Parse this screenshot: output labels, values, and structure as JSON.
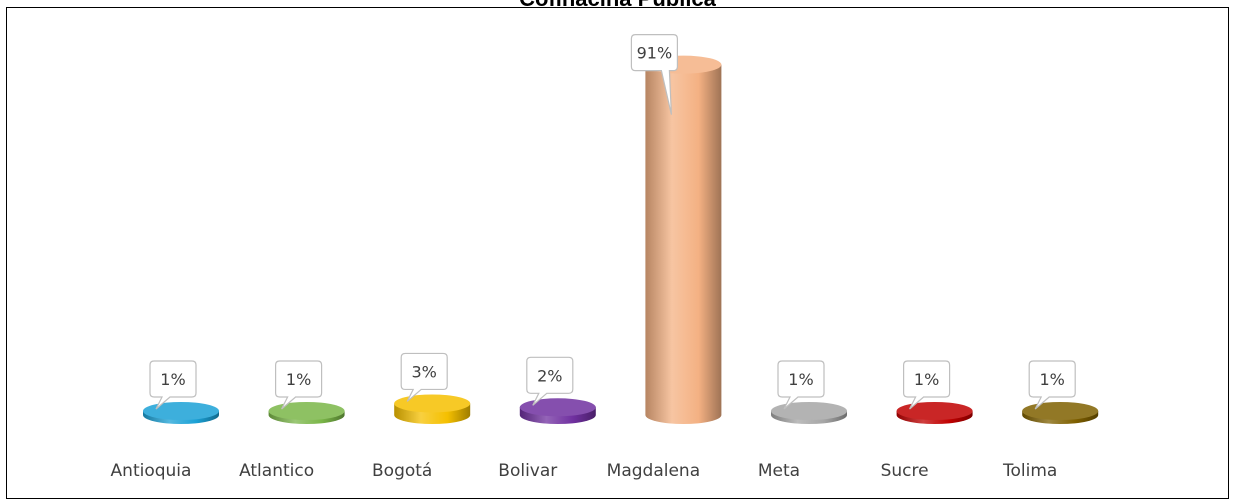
{
  "chart_data": {
    "type": "bar",
    "title": "Cofinaciña Pública",
    "categories": [
      "Antioquia",
      "Atlantico",
      "Bogotá",
      "Bolivar",
      "Magdalena",
      "Meta",
      "Sucre",
      "Tolima"
    ],
    "series": [
      {
        "values": [
          1,
          1,
          3,
          2,
          91,
          1,
          1,
          1
        ],
        "data_labels": [
          "1%",
          "1%",
          "3%",
          "2%",
          "91%",
          "1%",
          "1%",
          "1%"
        ]
      }
    ],
    "colors": [
      "#1ba1d6",
      "#7ab648",
      "#f5c000",
      "#7030a0",
      "#f4b183",
      "#a6a6a6",
      "#c00000",
      "#7f6000"
    ],
    "ylim": [
      0,
      100
    ],
    "grid": false,
    "legend": "none",
    "style": "3d-cylinder"
  }
}
